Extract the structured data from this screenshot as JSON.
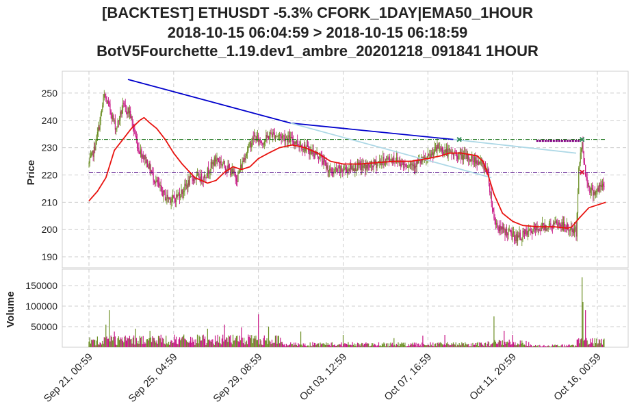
{
  "title_lines": [
    "[BACKTEST] ETHUSDT -5.3% CFORK_1DAY|EMA50_1HOUR",
    "2018-10-15 06:04:59 > 2018-10-15 06:18:59",
    "BotV5Fourchette_1.19.dev1_ambre_20201218_091841 1HOUR"
  ],
  "chart_data": [
    {
      "type": "candlestick",
      "ylabel": "Price",
      "ylim": [
        186,
        258
      ],
      "yticks": [
        190,
        200,
        210,
        220,
        230,
        240,
        250
      ],
      "xlim": [
        0,
        640
      ],
      "xticks": [
        {
          "label": "Sep 21, 00:59",
          "x": 0
        },
        {
          "label": "Sep 25, 04:59",
          "x": 100
        },
        {
          "label": "Sep 29, 08:59",
          "x": 200
        },
        {
          "label": "Oct 03, 12:59",
          "x": 300
        },
        {
          "label": "Oct 07, 16:59",
          "x": 400
        },
        {
          "label": "Oct 11, 20:59",
          "x": 500
        },
        {
          "label": "Oct 16, 00:59",
          "x": 600
        }
      ],
      "grid": true,
      "close_anchors": [
        [
          0,
          224
        ],
        [
          6,
          229
        ],
        [
          12,
          238
        ],
        [
          18,
          249
        ],
        [
          25,
          244
        ],
        [
          32,
          237
        ],
        [
          40,
          245
        ],
        [
          48,
          243
        ],
        [
          58,
          230
        ],
        [
          68,
          225
        ],
        [
          78,
          218
        ],
        [
          90,
          212
        ],
        [
          100,
          211
        ],
        [
          110,
          214
        ],
        [
          122,
          219
        ],
        [
          135,
          219
        ],
        [
          150,
          226
        ],
        [
          162,
          223
        ],
        [
          175,
          219
        ],
        [
          185,
          228
        ],
        [
          195,
          234
        ],
        [
          205,
          232
        ],
        [
          215,
          235
        ],
        [
          230,
          234
        ],
        [
          245,
          232
        ],
        [
          260,
          229
        ],
        [
          272,
          227
        ],
        [
          285,
          221
        ],
        [
          300,
          222
        ],
        [
          315,
          223
        ],
        [
          330,
          223
        ],
        [
          345,
          225
        ],
        [
          360,
          226
        ],
        [
          372,
          224
        ],
        [
          385,
          224
        ],
        [
          400,
          226
        ],
        [
          412,
          230
        ],
        [
          425,
          228
        ],
        [
          440,
          227
        ],
        [
          460,
          225
        ],
        [
          470,
          222
        ],
        [
          478,
          204
        ],
        [
          485,
          200
        ],
        [
          495,
          199
        ],
        [
          505,
          197
        ],
        [
          520,
          199
        ],
        [
          535,
          201
        ],
        [
          555,
          202
        ],
        [
          575,
          199
        ],
        [
          578,
          222
        ],
        [
          582,
          232
        ],
        [
          586,
          220
        ],
        [
          592,
          214
        ],
        [
          598,
          214
        ],
        [
          606,
          216
        ]
      ],
      "ema50_anchors": [
        [
          0,
          210.5
        ],
        [
          10,
          214
        ],
        [
          20,
          219
        ],
        [
          30,
          229
        ],
        [
          40,
          233
        ],
        [
          50,
          237
        ],
        [
          60,
          240
        ],
        [
          65,
          241
        ],
        [
          72,
          239
        ],
        [
          80,
          237
        ],
        [
          90,
          233
        ],
        [
          100,
          228
        ],
        [
          110,
          224
        ],
        [
          125,
          219
        ],
        [
          140,
          217
        ],
        [
          150,
          218
        ],
        [
          160,
          221
        ],
        [
          170,
          223
        ],
        [
          180,
          222
        ],
        [
          190,
          223
        ],
        [
          200,
          226
        ],
        [
          212,
          228
        ],
        [
          225,
          230
        ],
        [
          240,
          231
        ],
        [
          255,
          230
        ],
        [
          270,
          228
        ],
        [
          285,
          225
        ],
        [
          300,
          224
        ],
        [
          320,
          224
        ],
        [
          340,
          224.5
        ],
        [
          360,
          225
        ],
        [
          380,
          225
        ],
        [
          400,
          226
        ],
        [
          415,
          227
        ],
        [
          425,
          228
        ],
        [
          440,
          228
        ],
        [
          458,
          227
        ],
        [
          465,
          225
        ],
        [
          470,
          221
        ],
        [
          478,
          213
        ],
        [
          488,
          206
        ],
        [
          500,
          203
        ],
        [
          512,
          201.5
        ],
        [
          530,
          201
        ],
        [
          550,
          201
        ],
        [
          565,
          200.5
        ],
        [
          570,
          201
        ],
        [
          578,
          204
        ],
        [
          590,
          208
        ],
        [
          600,
          209
        ],
        [
          610,
          210
        ]
      ],
      "trend_lines": [
        {
          "color": "#0000cc",
          "points": [
            [
              46,
              255
            ],
            [
              238,
              239
            ],
            [
              430,
              233
            ]
          ]
        },
        {
          "color": "#add8e6",
          "points": [
            [
              238,
              239
            ],
            [
              475,
              219
            ]
          ]
        },
        {
          "color": "#add8e6",
          "points": [
            [
              430,
              233
            ],
            [
              575,
              228
            ]
          ]
        }
      ],
      "hlines": [
        {
          "y": 233,
          "x0": 0,
          "x1": 610,
          "color": "#006400",
          "style": "dashdot"
        },
        {
          "y": 221,
          "x0": 0,
          "x1": 610,
          "color": "#4b0082",
          "style": "dashdot"
        },
        {
          "y": 232.5,
          "x0": 528,
          "x1": 580,
          "color": "#800080",
          "style": "thick"
        }
      ],
      "markers": [
        {
          "x": 437,
          "y": 233,
          "color": "#2e8b57",
          "symbol": "x"
        },
        {
          "x": 582,
          "y": 233,
          "color": "#2e8b57",
          "symbol": "x"
        },
        {
          "x": 582,
          "y": 221,
          "color": "#dc143c",
          "symbol": "x"
        }
      ],
      "colors": {
        "up": "#6b8e23",
        "down": "#c71585",
        "ema": "#e8120e"
      }
    },
    {
      "type": "bar",
      "ylabel": "Volume",
      "ylim": [
        0,
        190000
      ],
      "yticks": [
        50000,
        100000,
        150000
      ],
      "grid": true,
      "spikes": [
        [
          20,
          55000
        ],
        [
          24,
          90000
        ],
        [
          30,
          38000
        ],
        [
          55,
          45000
        ],
        [
          72,
          40000
        ],
        [
          140,
          45000
        ],
        [
          160,
          55000
        ],
        [
          180,
          48000
        ],
        [
          200,
          80000
        ],
        [
          212,
          50000
        ],
        [
          250,
          38000
        ],
        [
          300,
          30000
        ],
        [
          360,
          22000
        ],
        [
          394,
          28000
        ],
        [
          420,
          30000
        ],
        [
          478,
          75000
        ],
        [
          490,
          40000
        ],
        [
          500,
          30000
        ],
        [
          582,
          170000
        ],
        [
          583,
          110000
        ],
        [
          586,
          90000
        ]
      ]
    }
  ]
}
